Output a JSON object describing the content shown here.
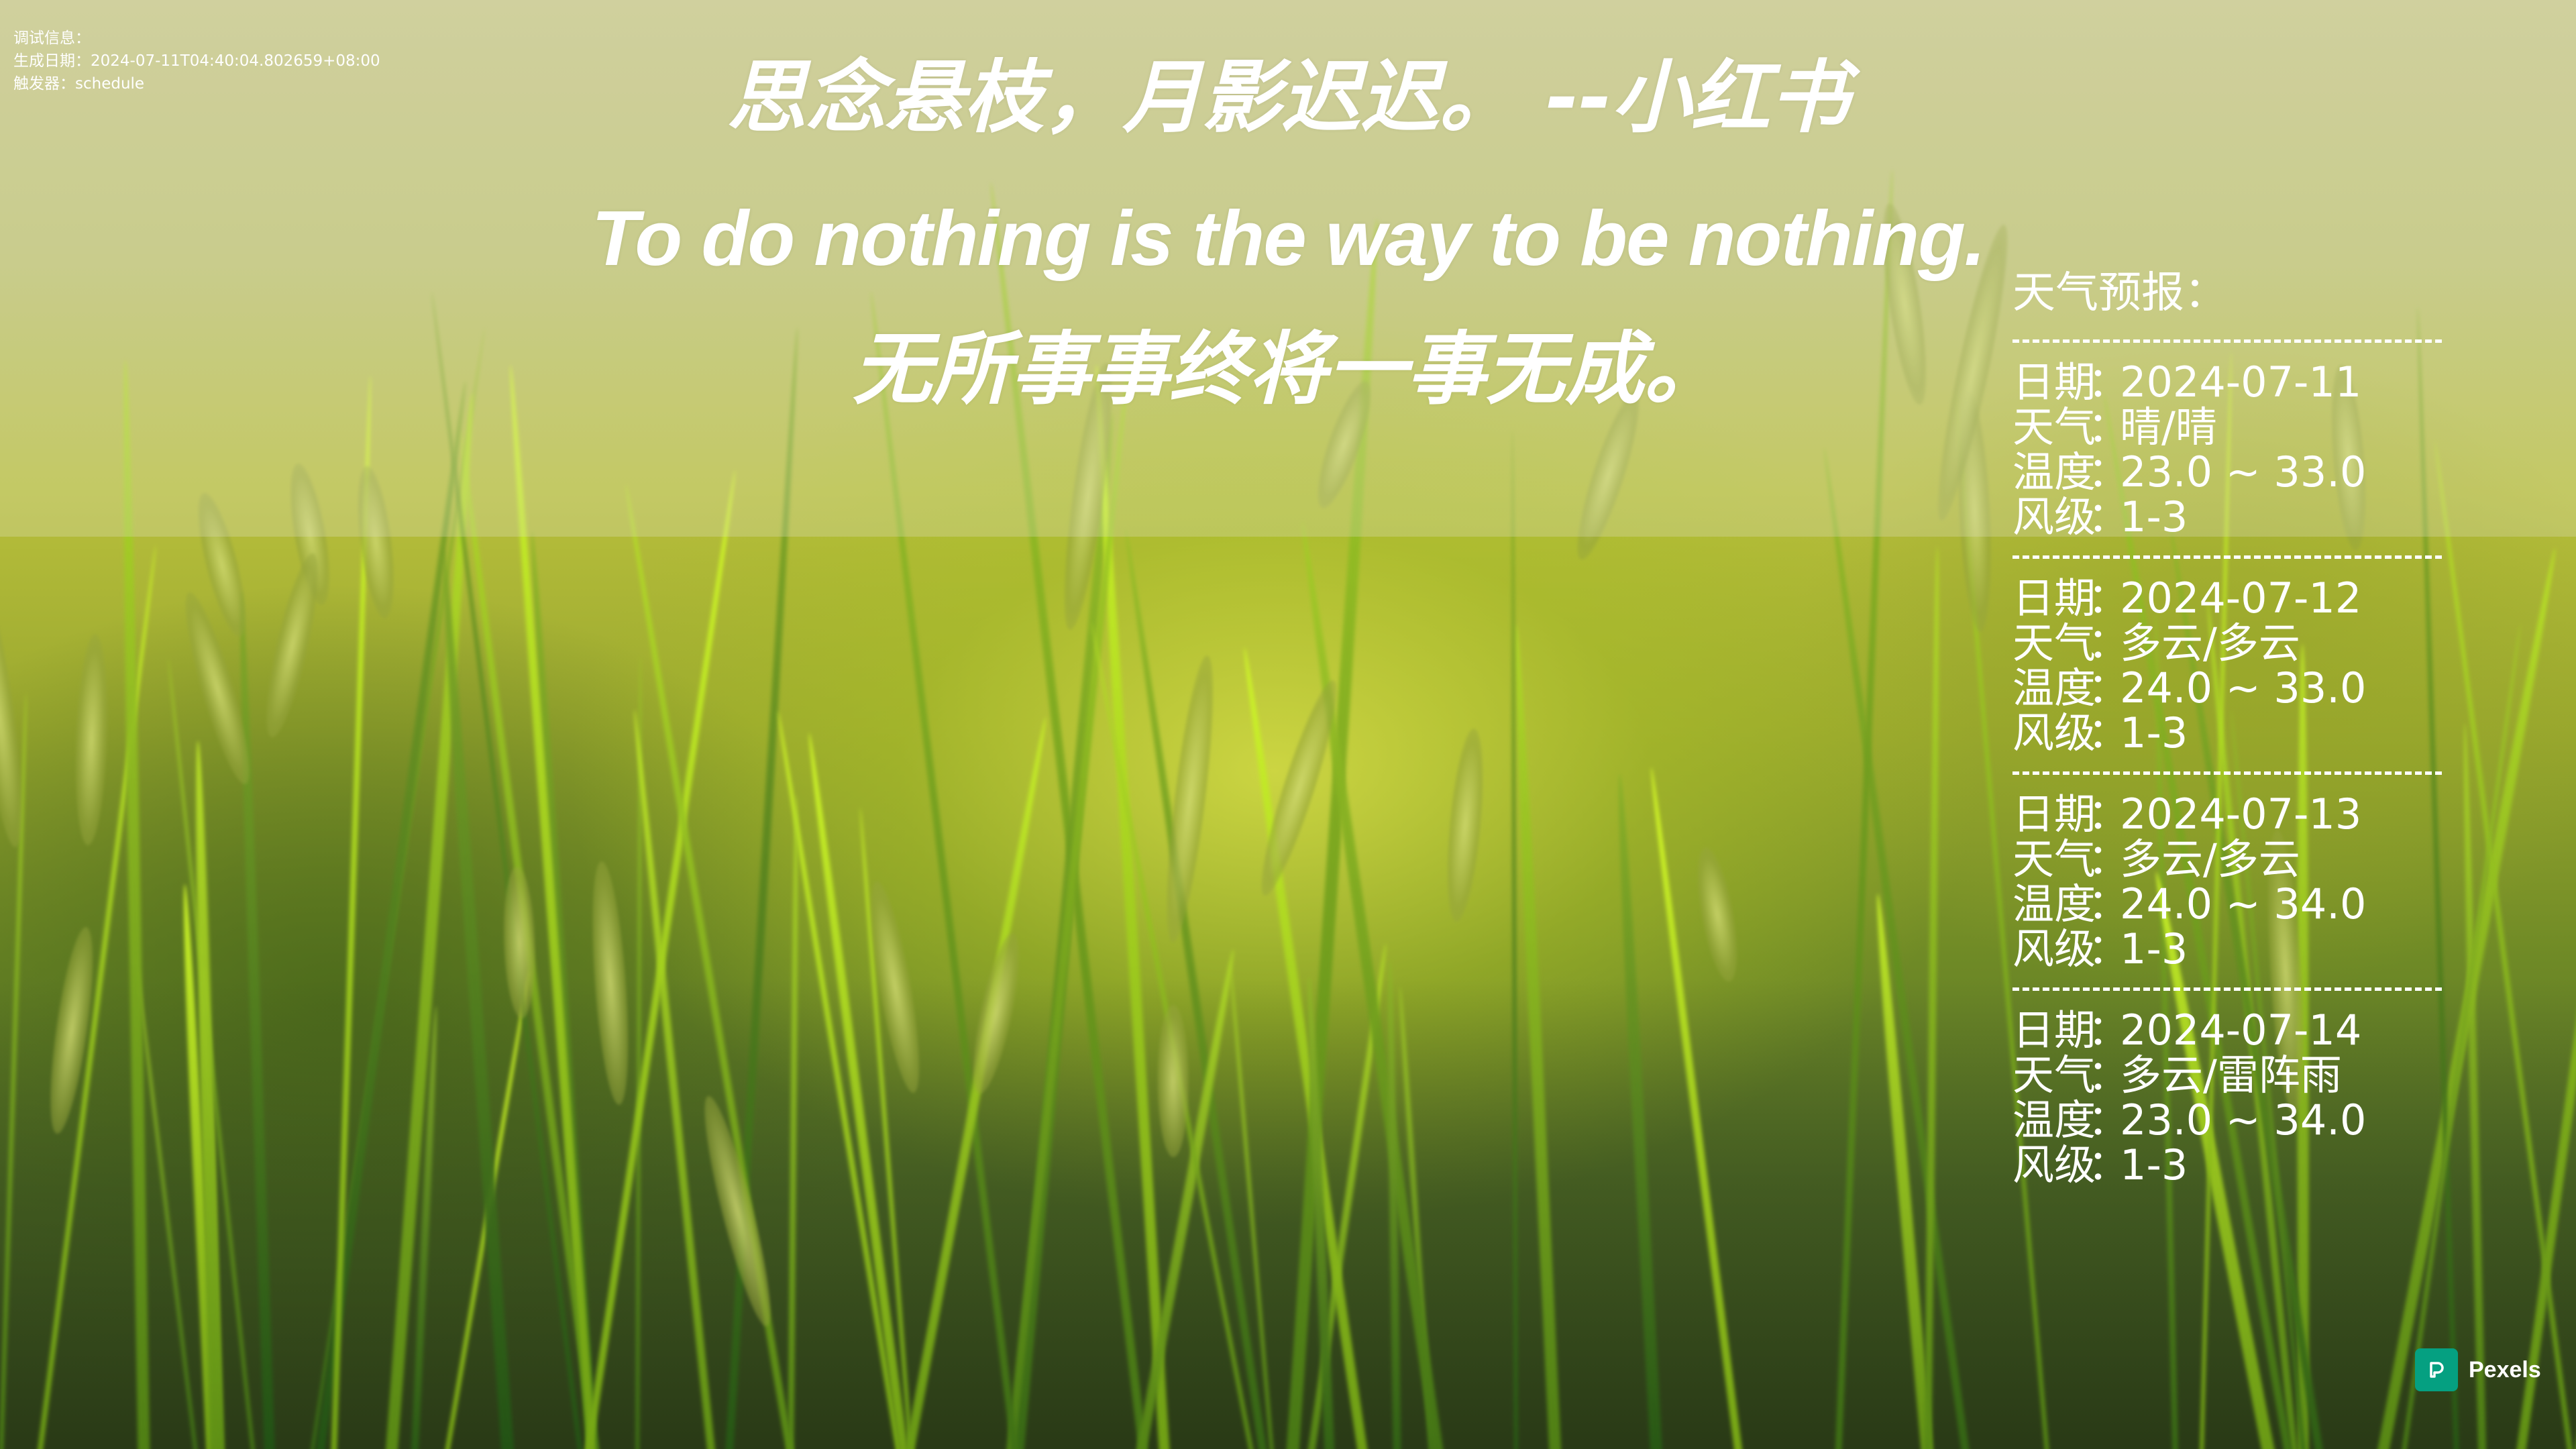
{
  "debug": {
    "label": "调试信息：",
    "generated": "生成日期：2024-07-11T04:40:04.802659+08:00",
    "trigger": "触发器：schedule"
  },
  "quotes": {
    "poem": "思念悬枝，月影迟迟。 --小红书",
    "english": "To do nothing is the way to be nothing.",
    "chinese": "无所事事终将一事无成。"
  },
  "weather": {
    "title": "天气预报：",
    "labels": {
      "date": "日期",
      "weather": "天气",
      "temp": "温度",
      "wind": "风级",
      "sep": "："
    },
    "days": [
      {
        "date": "2024-07-11",
        "weather": "晴/晴",
        "temp": "23.0 ~ 33.0",
        "wind": "1-3"
      },
      {
        "date": "2024-07-12",
        "weather": "多云/多云",
        "temp": "24.0 ~ 33.0",
        "wind": "1-3"
      },
      {
        "date": "2024-07-13",
        "weather": "多云/多云",
        "temp": "24.0 ~ 34.0",
        "wind": "1-3"
      },
      {
        "date": "2024-07-14",
        "weather": "多云/雷阵雨",
        "temp": "23.0 ~ 34.0",
        "wind": "1-3"
      }
    ]
  },
  "badge": {
    "text": "Pexels",
    "color": "#05a081"
  }
}
